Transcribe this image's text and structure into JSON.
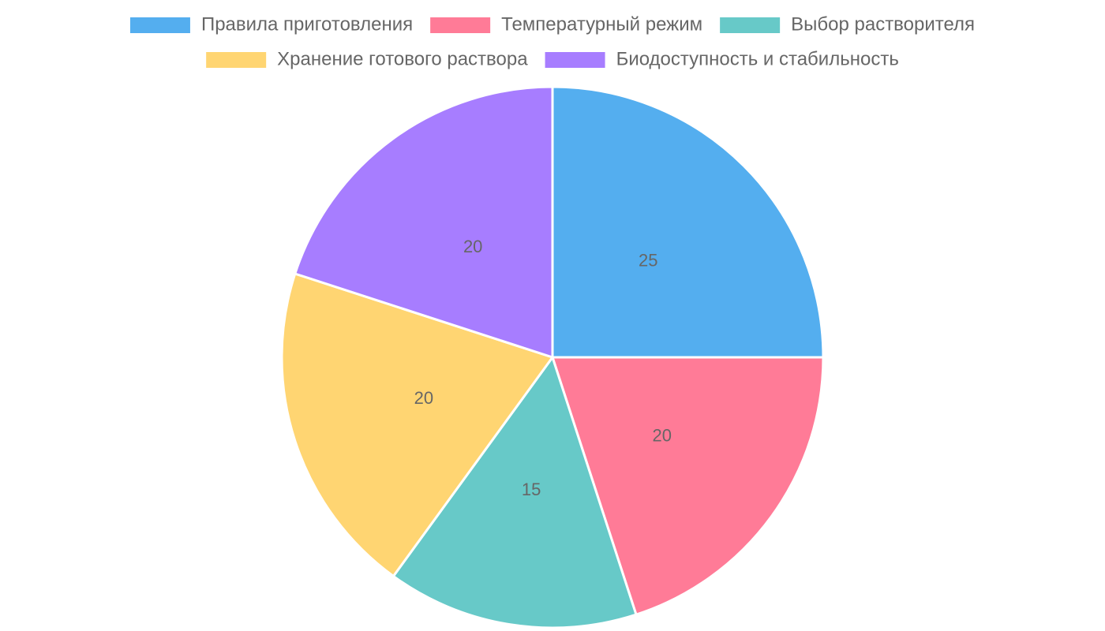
{
  "chart_data": {
    "type": "pie",
    "categories": [
      "Правила приготовления",
      "Температурный режим",
      "Выбор растворителя",
      "Хранение готового раствора",
      "Биодоступность и стабильность"
    ],
    "values": [
      25,
      20,
      15,
      20,
      20
    ],
    "colors": [
      "#54aeef",
      "#ff7b97",
      "#67c9c8",
      "#ffd572",
      "#a77dff"
    ],
    "legend": "top"
  }
}
